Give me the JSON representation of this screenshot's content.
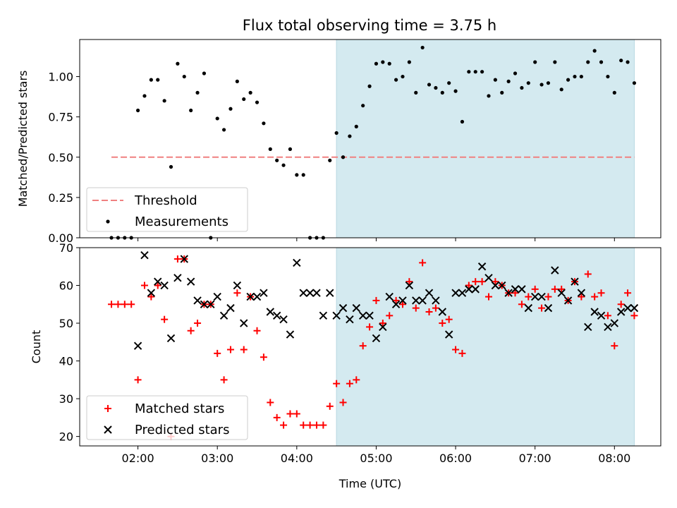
{
  "chart_data": {
    "type": "scatter",
    "title": "Flux total observing time = 3.75 h",
    "xlabel": "Time (UTC)",
    "x_unit": "hours UTC",
    "xlim": [
      "01:16",
      "08:35"
    ],
    "x_tick_labels": [
      "02:00",
      "03:00",
      "04:00",
      "05:00",
      "06:00",
      "07:00",
      "08:00"
    ],
    "highlight_span": {
      "start": "04:30",
      "end": "08:15",
      "color": "#d4eaf0"
    },
    "colors": {
      "threshold": "#f08080",
      "measurements": "#000000",
      "matched": "#ff0000",
      "predicted": "#000000",
      "highlight": "#d4eaf0"
    },
    "panels": [
      {
        "ylabel": "Matched/Predicted stars",
        "ylim": [
          0,
          1.23
        ],
        "y_ticks": [
          "0.00",
          "0.25",
          "0.50",
          "0.75",
          "1.00"
        ],
        "legend": {
          "placement": "lower-left",
          "entries": [
            "Threshold",
            "Measurements"
          ]
        },
        "threshold": {
          "name": "Threshold",
          "value": 0.5,
          "x_start": "01:40",
          "x_end": "08:15"
        },
        "series": [
          {
            "name": "Measurements",
            "marker": "dot",
            "x": [
              "01:40",
              "01:45",
              "01:50",
              "01:55",
              "02:00",
              "02:05",
              "02:10",
              "02:15",
              "02:20",
              "02:25",
              "02:30",
              "02:35",
              "02:40",
              "02:45",
              "02:50",
              "02:55",
              "03:00",
              "03:05",
              "03:10",
              "03:15",
              "03:20",
              "03:25",
              "03:30",
              "03:35",
              "03:40",
              "03:45",
              "03:50",
              "03:55",
              "04:00",
              "04:05",
              "04:10",
              "04:15",
              "04:20",
              "04:25",
              "04:30",
              "04:35",
              "04:40",
              "04:45",
              "04:50",
              "04:55",
              "05:00",
              "05:05",
              "05:10",
              "05:15",
              "05:20",
              "05:25",
              "05:30",
              "05:35",
              "05:40",
              "05:45",
              "05:50",
              "05:55",
              "06:00",
              "06:05",
              "06:10",
              "06:15",
              "06:20",
              "06:25",
              "06:30",
              "06:35",
              "06:40",
              "06:45",
              "06:50",
              "06:55",
              "07:00",
              "07:05",
              "07:10",
              "07:15",
              "07:20",
              "07:25",
              "07:30",
              "07:35",
              "07:40",
              "07:45",
              "07:50",
              "07:55",
              "08:00",
              "08:05",
              "08:10",
              "08:15"
            ],
            "y": [
              0,
              0,
              0,
              0,
              0.79,
              0.88,
              0.98,
              0.98,
              0.85,
              0.44,
              1.08,
              1.0,
              0.79,
              0.9,
              1.02,
              0,
              0.74,
              0.67,
              0.8,
              0.97,
              0.86,
              0.9,
              0.84,
              0.71,
              0.55,
              0.48,
              0.45,
              0.55,
              0.39,
              0.39,
              0,
              0,
              0,
              0.48,
              0.65,
              0.5,
              0.63,
              0.69,
              0.82,
              0.94,
              1.08,
              1.09,
              1.08,
              0.98,
              1.0,
              1.09,
              0.9,
              1.18,
              0.95,
              0.93,
              0.9,
              0.96,
              0.91,
              0.72,
              1.03,
              1.03,
              1.03,
              0.88,
              0.98,
              0.9,
              0.97,
              1.02,
              0.93,
              0.96,
              1.09,
              0.95,
              0.96,
              1.09,
              0.92,
              0.98,
              1.0,
              1.0,
              1.09,
              1.16,
              1.09,
              1.0,
              0.9,
              1.1,
              1.09,
              0.96
            ]
          }
        ]
      },
      {
        "ylabel": "Count",
        "ylim": [
          17.5,
          70
        ],
        "y_ticks": [
          "20",
          "30",
          "40",
          "50",
          "60",
          "70"
        ],
        "legend": {
          "placement": "lower-left",
          "entries": [
            "Matched stars",
            "Predicted stars"
          ]
        },
        "series": [
          {
            "name": "Matched stars",
            "marker": "plus",
            "x": [
              "01:40",
              "01:45",
              "01:50",
              "01:55",
              "02:00",
              "02:05",
              "02:10",
              "02:15",
              "02:20",
              "02:25",
              "02:30",
              "02:35",
              "02:40",
              "02:45",
              "02:50",
              "02:55",
              "03:00",
              "03:05",
              "03:10",
              "03:15",
              "03:20",
              "03:25",
              "03:30",
              "03:35",
              "03:40",
              "03:45",
              "03:50",
              "03:55",
              "04:00",
              "04:05",
              "04:10",
              "04:15",
              "04:20",
              "04:25",
              "04:30",
              "04:35",
              "04:40",
              "04:45",
              "04:50",
              "04:55",
              "05:00",
              "05:05",
              "05:10",
              "05:15",
              "05:20",
              "05:25",
              "05:30",
              "05:35",
              "05:40",
              "05:45",
              "05:50",
              "05:55",
              "06:00",
              "06:05",
              "06:10",
              "06:15",
              "06:20",
              "06:25",
              "06:30",
              "06:35",
              "06:40",
              "06:45",
              "06:50",
              "06:55",
              "07:00",
              "07:05",
              "07:10",
              "07:15",
              "07:20",
              "07:25",
              "07:30",
              "07:35",
              "07:40",
              "07:45",
              "07:50",
              "07:55",
              "08:00",
              "08:05",
              "08:10",
              "08:15"
            ],
            "y": [
              55,
              55,
              55,
              55,
              35,
              60,
              57,
              60,
              51,
              20,
              67,
              67,
              48,
              50,
              55,
              55,
              42,
              35,
              43,
              58,
              43,
              57,
              48,
              41,
              29,
              25,
              23,
              26,
              26,
              23,
              23,
              23,
              23,
              28,
              34,
              29,
              34,
              35,
              44,
              49,
              56,
              50,
              52,
              56,
              55,
              61,
              54,
              66,
              53,
              54,
              50,
              51,
              43,
              42,
              60,
              61,
              61,
              57,
              61,
              60,
              58,
              58,
              55,
              57,
              59,
              54,
              57,
              59,
              59,
              56,
              61,
              57,
              63,
              57,
              58,
              52,
              44,
              55,
              58,
              52
            ]
          },
          {
            "name": "Predicted stars",
            "marker": "x",
            "x": [
              "02:00",
              "02:05",
              "02:10",
              "02:15",
              "02:20",
              "02:25",
              "02:30",
              "02:35",
              "02:40",
              "02:45",
              "02:50",
              "02:55",
              "03:00",
              "03:05",
              "03:10",
              "03:15",
              "03:20",
              "03:25",
              "03:30",
              "03:35",
              "03:40",
              "03:45",
              "03:50",
              "03:55",
              "04:00",
              "04:05",
              "04:10",
              "04:15",
              "04:20",
              "04:25",
              "04:30",
              "04:35",
              "04:40",
              "04:45",
              "04:50",
              "04:55",
              "05:00",
              "05:05",
              "05:10",
              "05:15",
              "05:20",
              "05:25",
              "05:30",
              "05:35",
              "05:40",
              "05:45",
              "05:50",
              "05:55",
              "06:00",
              "06:05",
              "06:10",
              "06:15",
              "06:20",
              "06:25",
              "06:30",
              "06:35",
              "06:40",
              "06:45",
              "06:50",
              "06:55",
              "07:00",
              "07:05",
              "07:10",
              "07:15",
              "07:20",
              "07:25",
              "07:30",
              "07:35",
              "07:40",
              "07:45",
              "07:50",
              "07:55",
              "08:00",
              "08:05",
              "08:10",
              "08:15"
            ],
            "y": [
              44,
              68,
              58,
              61,
              60,
              46,
              62,
              67,
              61,
              56,
              55,
              55,
              57,
              52,
              54,
              60,
              50,
              57,
              57,
              58,
              53,
              52,
              51,
              47,
              66,
              58,
              58,
              58,
              52,
              58,
              52,
              54,
              51,
              54,
              52,
              52,
              46,
              49,
              57,
              55,
              56,
              60,
              56,
              56,
              58,
              56,
              53,
              47,
              58,
              58,
              59,
              59,
              65,
              62,
              60,
              60,
              58,
              59,
              59,
              54,
              57,
              57,
              54,
              64,
              58,
              56,
              61,
              58,
              49,
              53,
              52,
              49,
              50,
              53,
              54,
              54
            ]
          }
        ]
      }
    ]
  }
}
